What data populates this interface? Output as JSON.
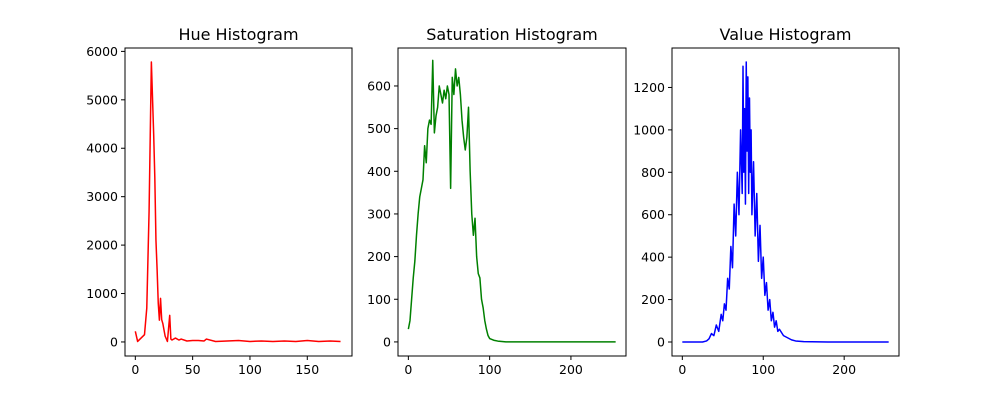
{
  "chart_data": [
    {
      "type": "line",
      "title": "Hue Histogram",
      "xlabel": "",
      "ylabel": "",
      "xlim": [
        -9,
        189
      ],
      "ylim": [
        -290,
        6070
      ],
      "xticks": [
        0,
        50,
        100,
        150
      ],
      "yticks": [
        0,
        1000,
        2000,
        3000,
        4000,
        5000,
        6000
      ],
      "grid": false,
      "legend": "none",
      "series": [
        {
          "color": "#ff0000",
          "x": [
            0,
            2,
            5,
            8,
            10,
            12,
            14,
            16,
            17,
            18,
            19,
            20,
            21,
            22,
            23,
            24,
            25,
            26,
            28,
            30,
            31,
            32,
            35,
            38,
            40,
            45,
            50,
            55,
            60,
            62,
            70,
            80,
            90,
            100,
            110,
            120,
            130,
            140,
            150,
            160,
            170,
            179
          ],
          "y": [
            220,
            10,
            80,
            150,
            700,
            2700,
            5780,
            4300,
            3400,
            2100,
            1500,
            800,
            450,
            900,
            460,
            380,
            250,
            120,
            10,
            550,
            60,
            40,
            80,
            40,
            60,
            20,
            30,
            30,
            20,
            60,
            10,
            20,
            30,
            10,
            20,
            10,
            20,
            10,
            30,
            10,
            20,
            10
          ]
        }
      ]
    },
    {
      "type": "line",
      "title": "Saturation Histogram",
      "xlabel": "",
      "ylabel": "",
      "xlim": [
        -12.75,
        267.75
      ],
      "ylim": [
        -33,
        689
      ],
      "xticks": [
        0,
        100,
        200
      ],
      "yticks": [
        0,
        100,
        200,
        300,
        400,
        500,
        600
      ],
      "grid": false,
      "legend": "none",
      "series": [
        {
          "color": "#008000",
          "x": [
            0,
            2,
            4,
            6,
            8,
            10,
            12,
            14,
            16,
            18,
            20,
            22,
            24,
            26,
            28,
            30,
            32,
            34,
            36,
            38,
            40,
            42,
            44,
            46,
            48,
            50,
            52,
            54,
            56,
            58,
            60,
            62,
            64,
            66,
            68,
            70,
            72,
            74,
            76,
            78,
            80,
            82,
            84,
            86,
            88,
            90,
            92,
            94,
            96,
            98,
            100,
            105,
            110,
            115,
            120,
            130,
            140,
            160,
            180,
            200,
            220,
            240,
            255
          ],
          "y": [
            30,
            50,
            100,
            150,
            190,
            250,
            300,
            340,
            360,
            380,
            460,
            420,
            500,
            520,
            510,
            660,
            490,
            530,
            550,
            600,
            580,
            560,
            590,
            570,
            600,
            580,
            360,
            620,
            580,
            640,
            600,
            620,
            580,
            520,
            480,
            450,
            480,
            550,
            400,
            300,
            250,
            290,
            200,
            160,
            150,
            100,
            80,
            50,
            30,
            15,
            8,
            4,
            2,
            1,
            0,
            0,
            0,
            0,
            0,
            0,
            0,
            0,
            0
          ]
        }
      ]
    },
    {
      "type": "line",
      "title": "Value Histogram",
      "xlabel": "",
      "ylabel": "",
      "xlim": [
        -12.75,
        267.75
      ],
      "ylim": [
        -66,
        1386
      ],
      "xticks": [
        0,
        100,
        200
      ],
      "yticks": [
        0,
        200,
        400,
        600,
        800,
        1000,
        1200
      ],
      "grid": false,
      "legend": "none",
      "series": [
        {
          "color": "#0000ff",
          "x": [
            0,
            10,
            20,
            25,
            30,
            33,
            36,
            39,
            42,
            45,
            48,
            50,
            52,
            54,
            56,
            58,
            60,
            62,
            64,
            66,
            68,
            70,
            72,
            74,
            75,
            76,
            77,
            78,
            79,
            80,
            81,
            82,
            83,
            84,
            85,
            86,
            88,
            90,
            92,
            94,
            96,
            98,
            100,
            102,
            104,
            106,
            108,
            110,
            112,
            114,
            116,
            118,
            120,
            125,
            130,
            135,
            140,
            150,
            160,
            180,
            200,
            220,
            255
          ],
          "y": [
            0,
            0,
            0,
            0,
            5,
            15,
            40,
            30,
            80,
            50,
            130,
            100,
            180,
            150,
            300,
            250,
            450,
            350,
            650,
            500,
            800,
            600,
            1000,
            700,
            1300,
            800,
            1100,
            650,
            1320,
            900,
            1250,
            700,
            1150,
            800,
            1000,
            600,
            850,
            500,
            700,
            380,
            550,
            300,
            400,
            220,
            280,
            150,
            200,
            100,
            140,
            70,
            100,
            50,
            60,
            30,
            20,
            10,
            5,
            2,
            1,
            0,
            0,
            0,
            0
          ]
        }
      ]
    }
  ]
}
